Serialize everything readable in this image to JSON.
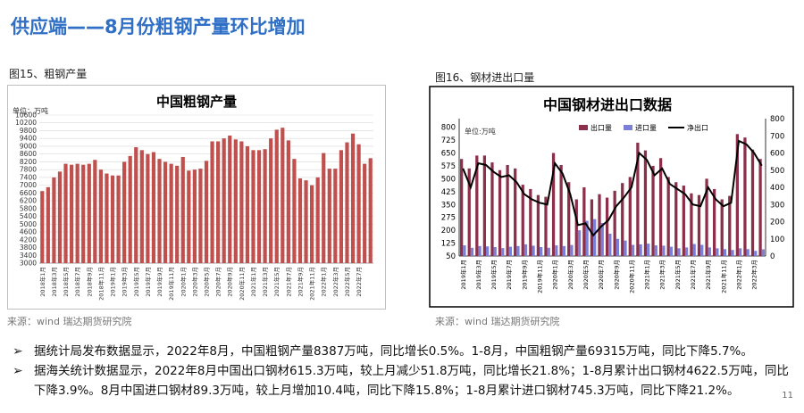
{
  "page": {
    "title": "供应端——8月份粗钢产量环比增加",
    "page_number": "11"
  },
  "fig15": {
    "label": "图15、粗钢产量",
    "source": "来源：wind   瑞达期货研究院"
  },
  "fig16": {
    "label": "图16、钢材进出口量",
    "source": "来源：wind   瑞达期货研究院"
  },
  "bullets": [
    "据统计局发布数据显示，2022年8月，中国粗钢产量8387万吨，同比增长0.5%。1-8月，中国粗钢产量69315万吨，同比下降5.7%。",
    "据海关统计数据显示，2022年8月中国出口钢材615.3万吨，较上月减少51.8万吨，同比增长21.8%；1-8月累计出口钢材4622.5万吨，同比下降3.9%。8月中国进口钢材89.3万吨，较上月增加10.4吨，同比下降15.8%；1-8月累计进口钢材745.3万吨，同比下降21.2%。"
  ],
  "colors": {
    "title": "#2f6fc6",
    "bar15": "#c0504d",
    "export": "#8b2f4a",
    "import": "#7b7fd6",
    "net": "#000000"
  },
  "chart_data": [
    {
      "type": "bar",
      "title": "中国粗钢产量",
      "ylabel": "单位：万吨",
      "ylim": [
        3000,
        10600
      ],
      "yticks": [
        3000,
        3400,
        3800,
        4200,
        4600,
        5000,
        5400,
        5800,
        6200,
        6600,
        7000,
        7400,
        7800,
        8200,
        8600,
        9000,
        9400,
        9800,
        10200,
        10600
      ],
      "tick_labels": [
        "2018年1月",
        "2018年3月",
        "2018年5月",
        "2018年7月",
        "2018年9月",
        "2018年11月",
        "2019年1月",
        "2019年3月",
        "2019年5月",
        "2019年7月",
        "2019年9月",
        "2019年11月",
        "2020年1月",
        "2020年3月",
        "2020年5月",
        "2020年7月",
        "2020年9月",
        "2020年11月",
        "2021年1月",
        "2021年3月",
        "2021年5月",
        "2021年7月",
        "2021年9月",
        "2021年11月",
        "2022年1月",
        "2022年3月",
        "2022年5月",
        "2022年7月"
      ],
      "values": [
        6700,
        6900,
        7400,
        7700,
        8100,
        8050,
        8100,
        8050,
        8100,
        8300,
        7800,
        7600,
        7500,
        7500,
        8200,
        8500,
        8950,
        8800,
        8600,
        8700,
        8350,
        8200,
        8100,
        8000,
        8450,
        7750,
        7800,
        7850,
        8250,
        9250,
        9250,
        9400,
        9550,
        9350,
        9250,
        9000,
        8800,
        8800,
        8850,
        9400,
        9850,
        9950,
        9300,
        8350,
        7350,
        7250,
        7000,
        7400,
        8650,
        7850,
        7850,
        8800,
        9200,
        9650,
        9100,
        8100,
        8387
      ]
    },
    {
      "type": "bar",
      "title": "中国钢材进出口数据",
      "ylabel": "单位:万吨",
      "ylim": [
        50,
        850
      ],
      "yticks": [
        50,
        125,
        200,
        275,
        350,
        425,
        500,
        575,
        650,
        725,
        800
      ],
      "y2lim": [
        0,
        800
      ],
      "y2ticks": [
        0,
        100,
        200,
        300,
        400,
        500,
        600,
        700,
        800
      ],
      "tick_labels": [
        "2019年1月",
        "2019年3月",
        "2019年5月",
        "2019年7月",
        "2019年9月",
        "2019年11月",
        "2020年1月",
        "2020年3月",
        "2020年5月",
        "2020年7月",
        "2020年9月",
        "2020年11月",
        "2021年1月",
        "2021年3月",
        "2021年5月",
        "2021年7月",
        "2021年9月",
        "2021年11月",
        "2022年1月",
        "2022年3月",
        "2022年5月",
        "2022年7月"
      ],
      "series": [
        {
          "name": "出口量",
          "type": "bar",
          "axis": "left",
          "values": [
            615,
            560,
            635,
            635,
            595,
            550,
            580,
            560,
            465,
            440,
            405,
            395,
            650,
            580,
            480,
            380,
            450,
            380,
            410,
            390,
            430,
            475,
            510,
            710,
            665,
            575,
            620,
            510,
            480,
            460,
            415,
            405,
            500,
            440,
            380,
            400,
            760,
            740,
            670,
            615
          ]
        },
        {
          "name": "进口量",
          "type": "bar",
          "axis": "left",
          "values": [
            112,
            98,
            108,
            106,
            102,
            96,
            104,
            108,
            118,
            110,
            102,
            98,
            112,
            108,
            114,
            200,
            255,
            265,
            242,
            180,
            150,
            140,
            115,
            118,
            122,
            112,
            110,
            104,
            95,
            100,
            120,
            115,
            100,
            95,
            90,
            85,
            95,
            90,
            80,
            89
          ]
        },
        {
          "name": "净出口",
          "type": "line",
          "axis": "right",
          "values": [
            510,
            400,
            540,
            530,
            490,
            460,
            470,
            430,
            360,
            330,
            310,
            300,
            540,
            480,
            360,
            180,
            190,
            120,
            170,
            210,
            290,
            340,
            400,
            600,
            560,
            470,
            510,
            420,
            390,
            360,
            300,
            290,
            400,
            330,
            290,
            310,
            670,
            650,
            600,
            526
          ]
        }
      ]
    }
  ]
}
